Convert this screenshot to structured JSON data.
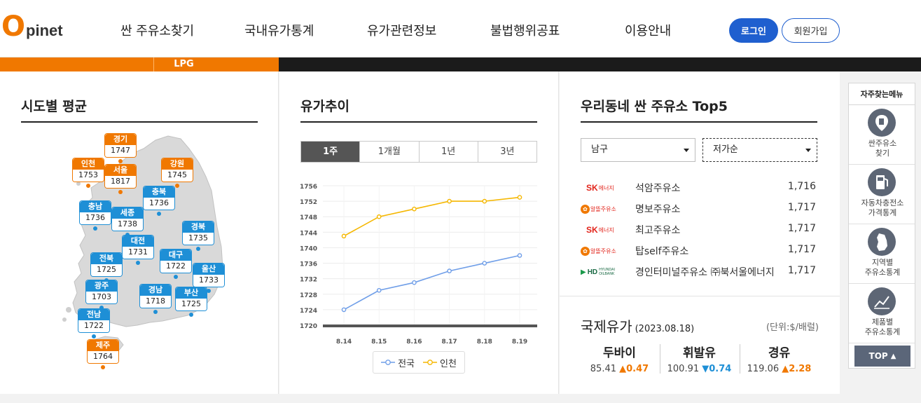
{
  "header": {
    "logo_o": "O",
    "logo_rest": "pinet",
    "nav": [
      "싼 주유소찾기",
      "국내유가통계",
      "유가관련정보",
      "불법행위공표",
      "이용안내"
    ],
    "login": "로그인",
    "join": "회원가입"
  },
  "band": {
    "lpg": "LPG"
  },
  "sido": {
    "title": "시도별 평균",
    "regions": [
      {
        "name": "경기",
        "value": "1747",
        "color": "orange"
      },
      {
        "name": "인천",
        "value": "1753",
        "color": "orange"
      },
      {
        "name": "서울",
        "value": "1817",
        "color": "orange"
      },
      {
        "name": "강원",
        "value": "1745",
        "color": "orange"
      },
      {
        "name": "충북",
        "value": "1736",
        "color": "blue"
      },
      {
        "name": "충남",
        "value": "1736",
        "color": "blue"
      },
      {
        "name": "세종",
        "value": "1738",
        "color": "blue"
      },
      {
        "name": "경북",
        "value": "1735",
        "color": "blue"
      },
      {
        "name": "대전",
        "value": "1731",
        "color": "blue"
      },
      {
        "name": "전북",
        "value": "1725",
        "color": "blue"
      },
      {
        "name": "대구",
        "value": "1722",
        "color": "blue"
      },
      {
        "name": "울산",
        "value": "1733",
        "color": "blue"
      },
      {
        "name": "광주",
        "value": "1703",
        "color": "blue"
      },
      {
        "name": "경남",
        "value": "1718",
        "color": "blue"
      },
      {
        "name": "부산",
        "value": "1725",
        "color": "blue"
      },
      {
        "name": "전남",
        "value": "1722",
        "color": "blue"
      },
      {
        "name": "제주",
        "value": "1764",
        "color": "orange"
      }
    ]
  },
  "trend": {
    "title": "유가추이",
    "tabs": [
      "1주",
      "1개월",
      "1년",
      "3년"
    ],
    "active_tab": "1주"
  },
  "chart_data": {
    "type": "line",
    "x": [
      "8.14",
      "8.15",
      "8.16",
      "8.17",
      "8.18",
      "8.19"
    ],
    "series": [
      {
        "name": "전국",
        "values": [
          1724,
          1729,
          1731,
          1734,
          1736,
          1738
        ],
        "color": "#6f9ee8"
      },
      {
        "name": "인천",
        "values": [
          1743,
          1748,
          1750,
          1752,
          1752,
          1753
        ],
        "color": "#f5b700"
      }
    ],
    "yticks": [
      1720,
      1724,
      1728,
      1732,
      1736,
      1740,
      1744,
      1748,
      1752,
      1756
    ],
    "ylim": [
      1720,
      1756
    ],
    "grid": true,
    "legend": "bottom"
  },
  "top5": {
    "title": "우리동네 싼 주유소 Top5",
    "region_select": "남구",
    "sort_select": "저가순",
    "stations": [
      {
        "brand": "sk-energy-logo",
        "brand_text": "SK에너지",
        "name": "석암주유소",
        "price": "1,716"
      },
      {
        "brand": "al-ddeul-logo",
        "brand_text": "알뜰주유소",
        "name": "명보주유소",
        "price": "1,717"
      },
      {
        "brand": "sk-energy-logo",
        "brand_text": "SK에너지",
        "name": "최고주유소",
        "price": "1,717"
      },
      {
        "brand": "al-ddeul-logo",
        "brand_text": "알뜰주유소",
        "name": "탑self주유소",
        "price": "1,717"
      },
      {
        "brand": "hd-oilbank-logo",
        "brand_text": "HD HYUNDAI OILBANK",
        "name": "경인터미널주유소 ㈜북서울에너지",
        "price": "1,717"
      }
    ]
  },
  "intl": {
    "title": "국제유가",
    "date": "(2023.08.18)",
    "unit": "(단위:$/배럴)",
    "oils": [
      {
        "name": "두바이",
        "price": "85.41",
        "change": "0.47",
        "dir": "up"
      },
      {
        "name": "휘발유",
        "price": "100.91",
        "change": "0.74",
        "dir": "down"
      },
      {
        "name": "경유",
        "price": "119.06",
        "change": "2.28",
        "dir": "up"
      }
    ]
  },
  "quick": {
    "title": "자주찾는메뉴",
    "items": [
      {
        "label": "싼주유소\n찾기",
        "icon": "fuel-pump-pin-icon"
      },
      {
        "label": "자동차충전소\n가격통계",
        "icon": "charging-station-icon"
      },
      {
        "label": "지역별\n주유소통계",
        "icon": "korea-map-icon"
      },
      {
        "label": "제품별\n주유소통계",
        "icon": "line-chart-icon"
      }
    ],
    "top": "TOP"
  }
}
